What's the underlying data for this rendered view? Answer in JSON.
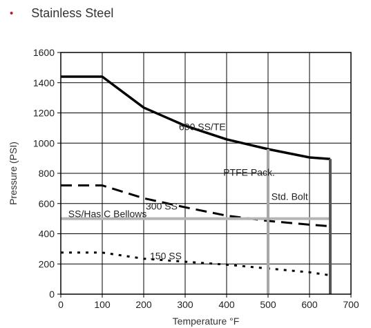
{
  "heading": {
    "bullet": "•",
    "title": "Stainless Steel"
  },
  "chart_data": {
    "type": "line",
    "title": "",
    "xlabel": "Temperature °F",
    "ylabel": "Pressure (PSI)",
    "xlim": [
      0,
      700
    ],
    "ylim": [
      0,
      1600
    ],
    "xticks": [
      0,
      100,
      200,
      300,
      400,
      500,
      600,
      700
    ],
    "yticks": [
      0,
      200,
      400,
      600,
      800,
      1000,
      1200,
      1400,
      1600
    ],
    "xtick_labels": [
      "0",
      "100",
      "200",
      "300",
      "400",
      "500",
      "600",
      "700"
    ],
    "ytick_labels": [
      "0",
      "200",
      "400",
      "600",
      "800",
      "1000",
      "1200",
      "1400",
      "1600"
    ],
    "grid": true,
    "series": [
      {
        "name": "600 SS/TE",
        "style": "solid",
        "color": "#000000",
        "x": [
          0,
          100,
          200,
          300,
          400,
          500,
          600,
          650
        ],
        "y": [
          1440,
          1440,
          1235,
          1115,
          1025,
          960,
          905,
          895
        ]
      },
      {
        "name": "300 SS",
        "style": "dashed",
        "color": "#000000",
        "x": [
          0,
          100,
          200,
          300,
          400,
          500,
          600,
          650
        ],
        "y": [
          720,
          720,
          635,
          575,
          520,
          485,
          460,
          450
        ]
      },
      {
        "name": "150 SS",
        "style": "dotted",
        "color": "#000000",
        "x": [
          0,
          100,
          200,
          300,
          400,
          500,
          600,
          650
        ],
        "y": [
          275,
          275,
          235,
          215,
          195,
          170,
          145,
          125
        ]
      },
      {
        "name": "SS/Has C Bellows",
        "style": "solid",
        "color": "#b4b4b4",
        "x": [
          0,
          650
        ],
        "y": [
          500,
          500
        ]
      },
      {
        "name": "PTFE Pack.",
        "style": "solid",
        "color": "#a8a8a8",
        "x": [
          500,
          500
        ],
        "y": [
          0,
          960
        ]
      },
      {
        "name": "Std. Bolt",
        "style": "solid",
        "color": "#555555",
        "x": [
          650,
          650
        ],
        "y": [
          0,
          895
        ]
      }
    ],
    "annotations": [
      {
        "text": "600 SS/TE",
        "x": 285,
        "y": 1085
      },
      {
        "text": "PTFE Pack.",
        "x": 392,
        "y": 785
      },
      {
        "text": "Std. Bolt",
        "x": 508,
        "y": 625
      },
      {
        "text": "300 SS",
        "x": 205,
        "y": 560
      },
      {
        "text": "SS/Has C Bellows",
        "x": 18,
        "y": 510
      },
      {
        "text": "150 SS",
        "x": 215,
        "y": 230
      }
    ]
  }
}
